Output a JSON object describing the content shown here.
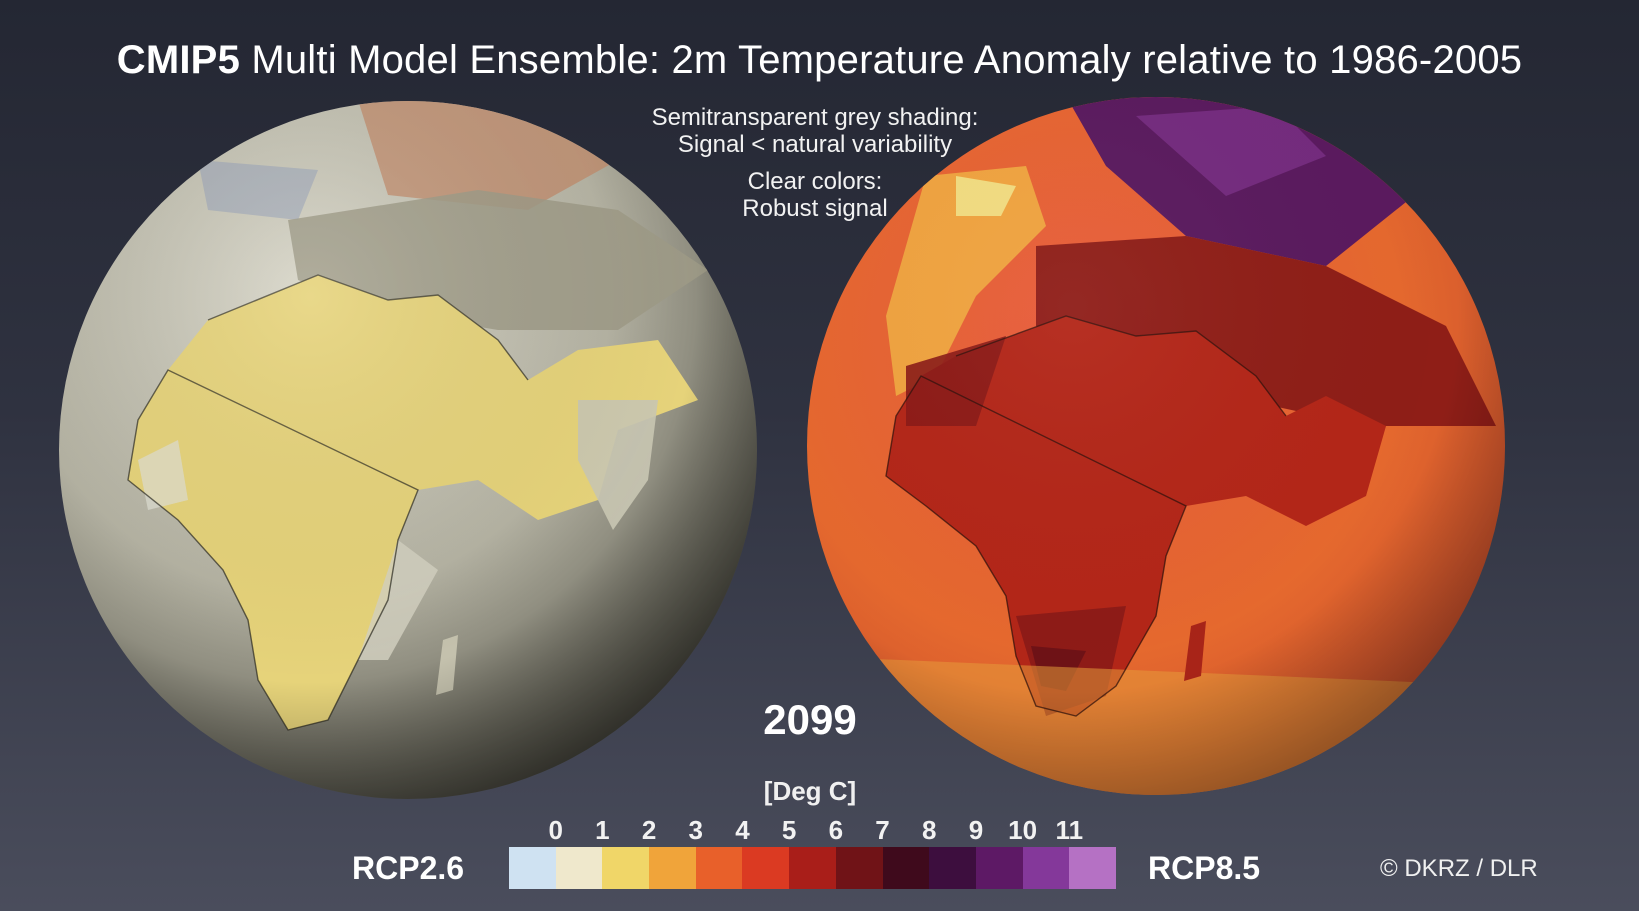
{
  "title": {
    "bold": "CMIP5",
    "rest": " Multi Model Ensemble: 2m Temperature Anomaly relative to 1986-2005"
  },
  "notes": {
    "line1": "Semitransparent grey shading:",
    "line2": "Signal < natural variability",
    "line3": "Clear colors:",
    "line4": "Robust signal"
  },
  "year": "2099",
  "unit": "[Deg C]",
  "scenarios": {
    "left": "RCP2.6",
    "right": "RCP8.5"
  },
  "colorbar": {
    "ticks": [
      "0",
      "1",
      "2",
      "3",
      "4",
      "5",
      "6",
      "7",
      "8",
      "9",
      "10",
      "11"
    ],
    "colors": [
      "#cfe2f2",
      "#efe8cc",
      "#f0d668",
      "#f0a43a",
      "#e8602a",
      "#db3a22",
      "#a91e19",
      "#701317",
      "#3f0a1c",
      "#3d0e3e",
      "#5d1965",
      "#84389a",
      "#b571c4"
    ]
  },
  "copyright": "© DKRZ / DLR"
}
